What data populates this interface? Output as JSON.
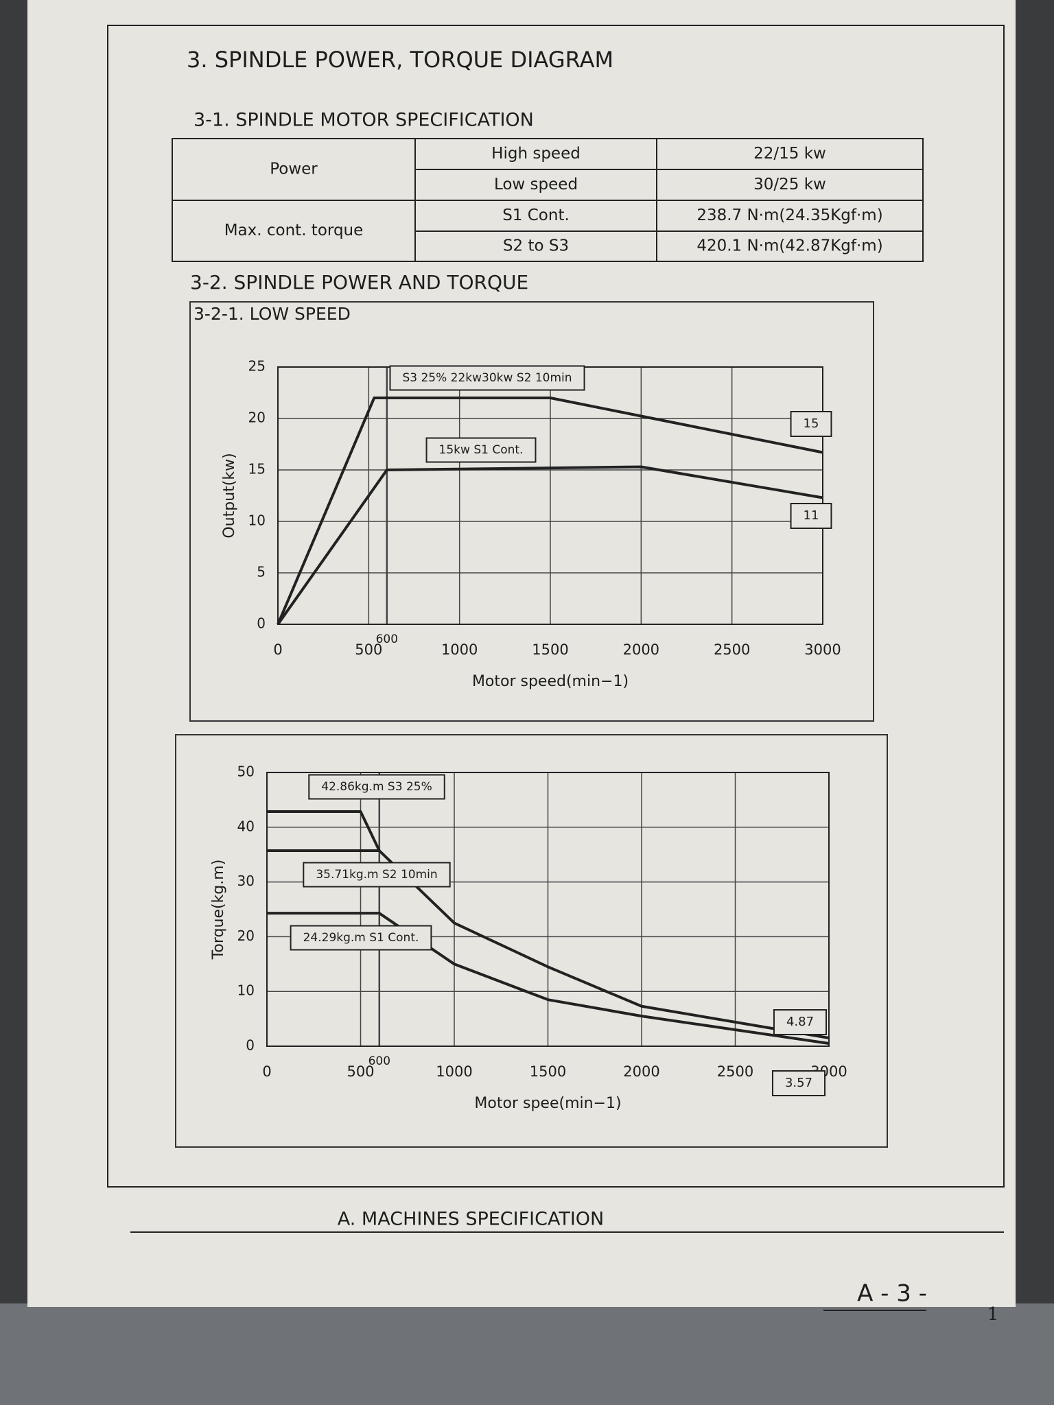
{
  "title": "3. SPINDLE POWER, TORQUE DIAGRAM",
  "section_1": "3-1. SPINDLE MOTOR SPECIFICATION",
  "spec_table": {
    "groups": [
      {
        "label": "Power",
        "rows": [
          [
            "High speed",
            "22/15 kw"
          ],
          [
            "Low speed",
            "30/25 kw"
          ]
        ]
      },
      {
        "label": "Max. cont. torque",
        "rows": [
          [
            "S1 Cont.",
            "238.7 N·m(24.35Kgf·m)"
          ],
          [
            "S2 to S3",
            "420.1 N·m(42.87Kgf·m)"
          ]
        ]
      }
    ]
  },
  "section_2": "3-2. SPINDLE POWER AND TORQUE",
  "subsection": "3-2-1. LOW SPEED",
  "chart_data": [
    {
      "type": "line",
      "x_label": "Motor speed(min−1)",
      "y_label": "Output(kw)",
      "xlim": [
        0,
        3000
      ],
      "ylim": [
        0,
        25
      ],
      "xticks": [
        0,
        500,
        600,
        1000,
        1500,
        2000,
        2500,
        3000
      ],
      "yticks": [
        0,
        5,
        10,
        15,
        20,
        25
      ],
      "grid": true,
      "series": [
        {
          "name": "S3 25% 22kw30kw S2 10min",
          "color": "#222222",
          "x": [
            0,
            530,
            1500,
            3000
          ],
          "values": [
            0,
            22,
            22,
            16.7
          ]
        },
        {
          "name": "15kw S1 Cont.",
          "color": "#222222",
          "x": [
            0,
            600,
            2000,
            3000
          ],
          "values": [
            0,
            15,
            15.3,
            12.3
          ]
        }
      ],
      "annotations": [
        "15",
        "11"
      ]
    },
    {
      "type": "line",
      "x_label": "Motor spee(min−1)",
      "y_label": "Torque(kg.m)",
      "xlim": [
        0,
        3000
      ],
      "ylim": [
        0,
        50
      ],
      "xticks": [
        0,
        500,
        600,
        1000,
        1500,
        2000,
        2500,
        3000
      ],
      "yticks": [
        0,
        10,
        20,
        30,
        40,
        50
      ],
      "grid": true,
      "series": [
        {
          "name": "42.86kg.m S3 25%",
          "color": "#222222",
          "x": [
            0,
            500,
            600,
            1000,
            1500,
            2000,
            3000
          ],
          "values": [
            42.86,
            42.86,
            35.71,
            22.5,
            14.5,
            7.3,
            1.5
          ]
        },
        {
          "name": "35.71kg.m S2 10min",
          "color": "#222222",
          "x": [
            0,
            600
          ],
          "values": [
            35.71,
            35.71
          ]
        },
        {
          "name": "24.29kg.m S1 Cont.",
          "color": "#222222",
          "x": [
            0,
            600,
            1000,
            1500,
            2000,
            3000
          ],
          "values": [
            24.29,
            24.29,
            15,
            8.5,
            5.5,
            0.5
          ]
        }
      ],
      "annotations": [
        "4.87",
        "3.57"
      ]
    }
  ],
  "footer": {
    "section": "A. MACHINES SPECIFICATION",
    "page": "A - 3 -",
    "sheet": "1"
  }
}
